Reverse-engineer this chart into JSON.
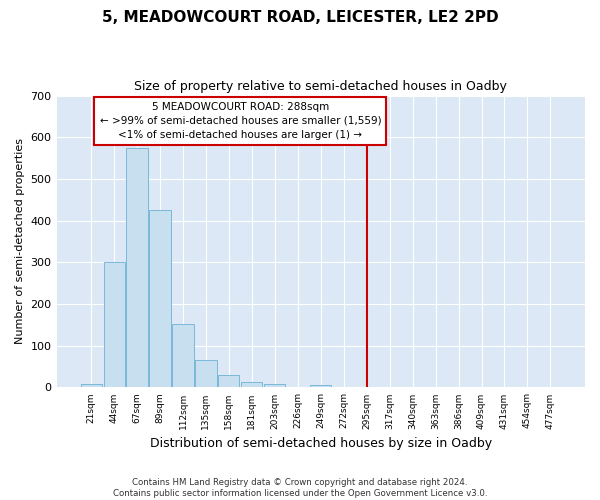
{
  "title": "5, MEADOWCOURT ROAD, LEICESTER, LE2 2PD",
  "subtitle": "Size of property relative to semi-detached houses in Oadby",
  "xlabel": "Distribution of semi-detached houses by size in Oadby",
  "ylabel": "Number of semi-detached properties",
  "bar_color": "#c8dff0",
  "bar_edge_color": "#7ab8d8",
  "categories": [
    "21sqm",
    "44sqm",
    "67sqm",
    "89sqm",
    "112sqm",
    "135sqm",
    "158sqm",
    "181sqm",
    "203sqm",
    "226sqm",
    "249sqm",
    "272sqm",
    "295sqm",
    "317sqm",
    "340sqm",
    "363sqm",
    "386sqm",
    "409sqm",
    "431sqm",
    "454sqm",
    "477sqm"
  ],
  "values": [
    8,
    302,
    575,
    425,
    152,
    65,
    30,
    12,
    8,
    0,
    5,
    0,
    0,
    0,
    0,
    0,
    0,
    0,
    0,
    0,
    0
  ],
  "ylim": [
    0,
    700
  ],
  "yticks": [
    0,
    100,
    200,
    300,
    400,
    500,
    600,
    700
  ],
  "red_line_index": 12,
  "annotation_title": "5 MEADOWCOURT ROAD: 288sqm",
  "annotation_line1": "← >99% of semi-detached houses are smaller (1,559)",
  "annotation_line2": "<1% of semi-detached houses are larger (1) →",
  "annotation_box_color": "#ffffff",
  "annotation_border_color": "#cc0000",
  "footer_line1": "Contains HM Land Registry data © Crown copyright and database right 2024.",
  "footer_line2": "Contains public sector information licensed under the Open Government Licence v3.0.",
  "fig_bg_color": "#ffffff",
  "plot_bg_color": "#dce8f5"
}
